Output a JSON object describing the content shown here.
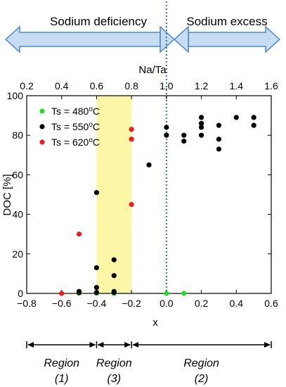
{
  "banner": {
    "left_label": "Sodium deficiency",
    "right_label": "Sodium excess"
  },
  "regions": [
    {
      "name": "Region",
      "number": "(1)",
      "x_from": -0.8,
      "x_to": -0.4
    },
    {
      "name": "Region",
      "number": "(3)",
      "x_from": -0.4,
      "x_to": -0.2
    },
    {
      "name": "Region",
      "number": "(2)",
      "x_from": -0.2,
      "x_to": 0.6
    }
  ],
  "colors": {
    "green": "#22dd22",
    "black": "#000000",
    "red": "#ee1c1c",
    "highlight": "#fbf7a6",
    "divider": "#2a6fbd",
    "arrow_fill": "#c5dcf2",
    "arrow_stroke": "#4a86c8"
  },
  "chart_data": {
    "type": "scatter",
    "xlabel": "x",
    "ylabel": "DOC [%]",
    "top_axis_label": "Na/Ta",
    "xlim": [
      -0.8,
      0.6
    ],
    "ylim": [
      0,
      100
    ],
    "x_ticks": [
      "−0.8",
      "−0.6",
      "−0.4",
      "−0.2",
      "0.0",
      "0.2",
      "0.4",
      "0.6"
    ],
    "y_ticks": [
      "0",
      "20",
      "40",
      "60",
      "80",
      "100"
    ],
    "top_ticks": [
      "0.2",
      "0.4",
      "0.6",
      "0.8",
      "1.0",
      "1.2",
      "1.4",
      "1.6"
    ],
    "highlight_x_range": [
      -0.4,
      -0.2
    ],
    "vertical_line_x": 0.0,
    "legend_position": "top-left",
    "series": [
      {
        "name": "Ts = 480°C",
        "color": "#22dd22",
        "points": [
          [
            -0.5,
            0
          ],
          [
            -0.4,
            0
          ],
          [
            -0.3,
            0
          ],
          [
            0.0,
            0
          ],
          [
            0.1,
            0
          ]
        ]
      },
      {
        "name": "Ts = 550°C",
        "color": "#000000",
        "points": [
          [
            -0.5,
            0.5
          ],
          [
            -0.4,
            0.5
          ],
          [
            -0.3,
            0.5
          ],
          [
            -0.5,
            1
          ],
          [
            -0.4,
            3
          ],
          [
            -0.3,
            1
          ],
          [
            -0.4,
            13
          ],
          [
            -0.3,
            9
          ],
          [
            -0.3,
            17
          ],
          [
            -0.4,
            51
          ],
          [
            -0.1,
            65
          ],
          [
            0.0,
            80
          ],
          [
            0.0,
            84
          ],
          [
            0.1,
            77
          ],
          [
            0.1,
            80
          ],
          [
            0.2,
            80
          ],
          [
            0.2,
            84
          ],
          [
            0.2,
            86
          ],
          [
            0.2,
            89
          ],
          [
            0.3,
            73
          ],
          [
            0.3,
            78
          ],
          [
            0.3,
            85
          ],
          [
            0.4,
            89
          ],
          [
            0.5,
            85
          ],
          [
            0.5,
            89
          ]
        ]
      },
      {
        "name": "Ts = 620°C",
        "color": "#ee1c1c",
        "points": [
          [
            -0.6,
            0
          ],
          [
            -0.5,
            30
          ],
          [
            -0.2,
            45
          ],
          [
            -0.2,
            78
          ],
          [
            -0.2,
            83
          ]
        ]
      }
    ]
  }
}
